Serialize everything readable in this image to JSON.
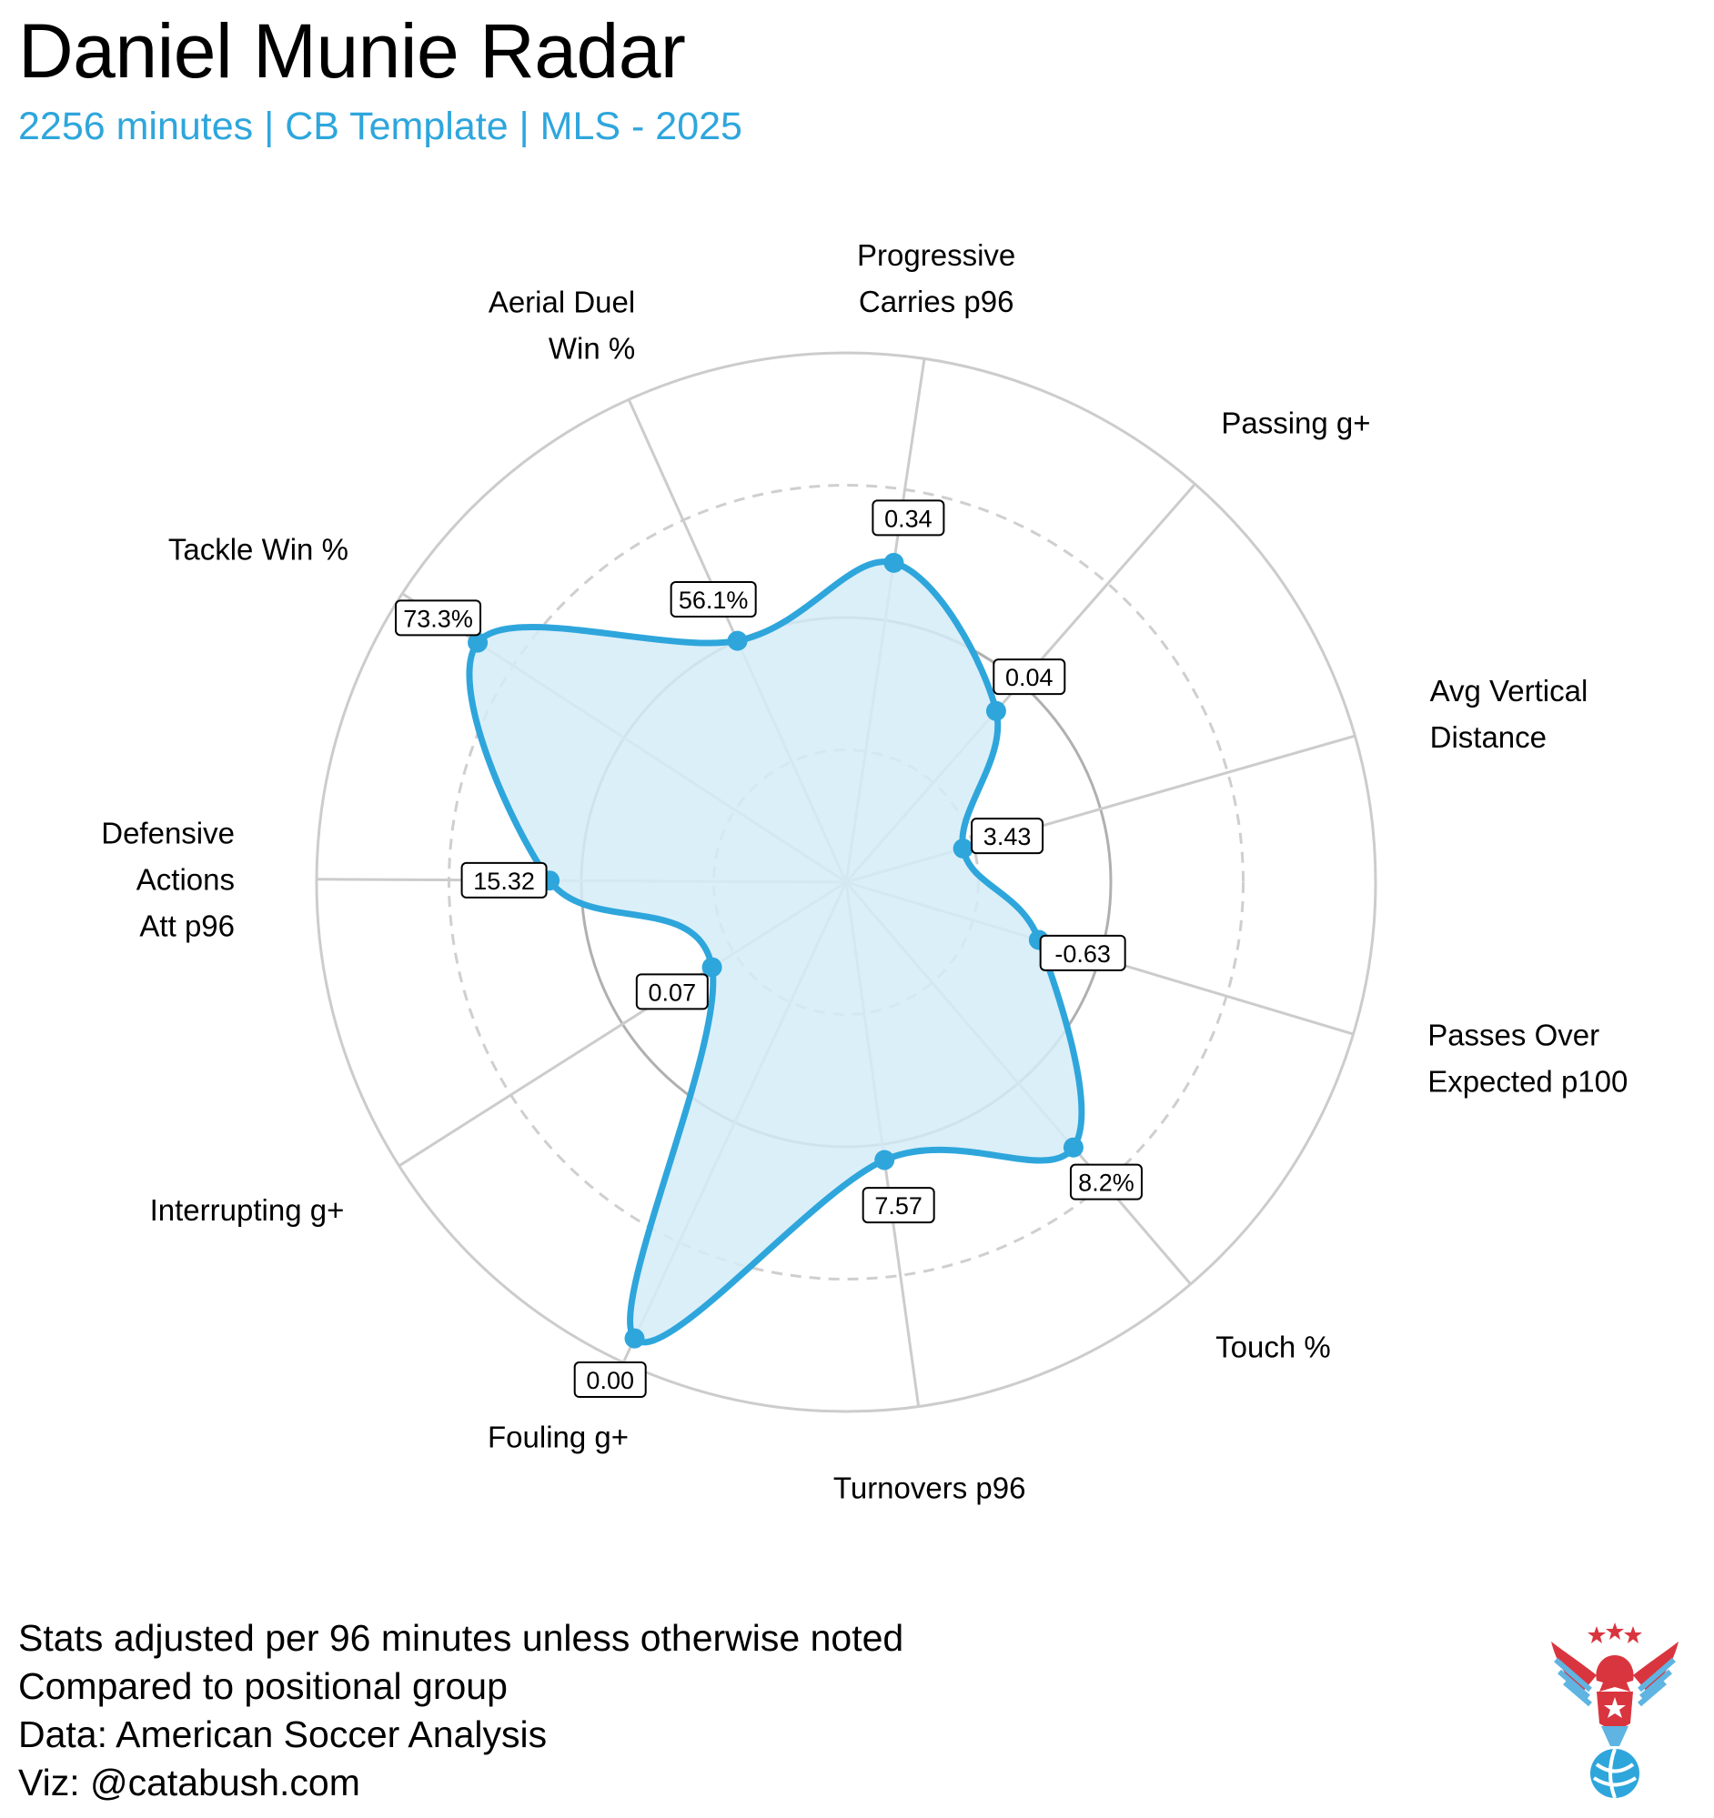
{
  "header": {
    "title": "Daniel Munie Radar",
    "subtitle": "2256 minutes | CB Template | MLS - 2025"
  },
  "colors": {
    "accent": "#2ea6dc",
    "fill": "#d5ecf8",
    "grid": "#cccccc"
  },
  "chart_data": {
    "type": "radar",
    "title": "Daniel Munie Radar",
    "scale": "percentile",
    "rlim": [
      0,
      100
    ],
    "categories": [
      "Progressive Carries p96",
      "Passing g+",
      "Avg Vertical Distance",
      "Passes Over Expected p100",
      "Touch %",
      "Turnovers p96",
      "Fouling g+",
      "Interrupting g+",
      "Defensive Actions Att p96",
      "Tackle Win %",
      "Aerial Duel Win %"
    ],
    "axis_labels": [
      [
        "Progressive",
        "Carries p96"
      ],
      [
        "Passing g+"
      ],
      [
        "Avg Vertical",
        "Distance"
      ],
      [
        "Passes Over",
        "Expected p100"
      ],
      [
        "Touch %"
      ],
      [
        "Turnovers p96"
      ],
      [
        "Fouling g+"
      ],
      [
        "Interrupting g+"
      ],
      [
        "Defensive",
        "Actions",
        "Att p96"
      ],
      [
        "Tackle Win %"
      ],
      [
        "Aerial Duel",
        "Win %"
      ]
    ],
    "value_labels": [
      "0.34",
      "0.04",
      "3.43",
      "-0.63",
      "8.2%",
      "7.57",
      "0.00",
      "0.07",
      "15.32",
      "73.3%",
      "56.1%"
    ],
    "percentiles": [
      61,
      43,
      23,
      38,
      66,
      53,
      95,
      30,
      56,
      83,
      50
    ]
  },
  "notes": [
    "Stats adjusted per 96 minutes unless otherwise noted",
    "Compared to positional group",
    "Data: American Soccer Analysis",
    "Viz: @catabush.com"
  ],
  "logo": {
    "icon": "eagle-soccer-ball-logo"
  }
}
